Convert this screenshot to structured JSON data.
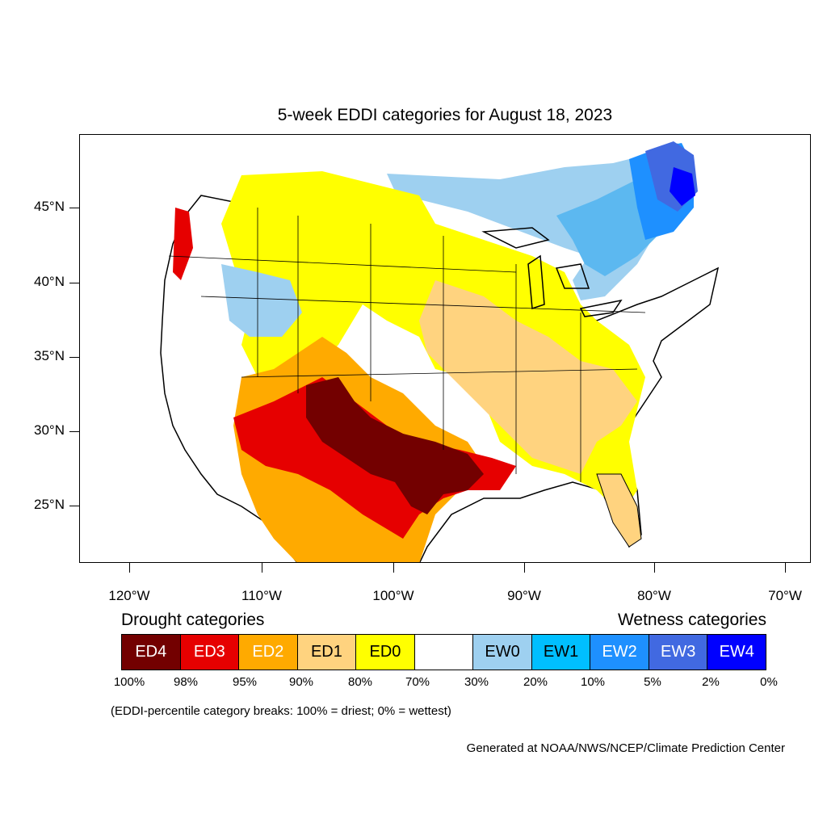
{
  "title": "5-week EDDI categories for August 18, 2023",
  "map": {
    "lat_labels": [
      "45°N",
      "40°N",
      "35°N",
      "30°N",
      "25°N"
    ],
    "lon_labels": [
      "120°W",
      "110°W",
      "100°W",
      "90°W",
      "80°W",
      "70°W"
    ],
    "region_colors": {
      "ed4": "#730000",
      "ed3": "#e60000",
      "ed2": "#ffaa00",
      "ed1": "#ffd37f",
      "ed0": "#ffff00",
      "neutral": "#ffffff",
      "ew0": "#9ed0f0",
      "ew1": "#00bfff",
      "ew2": "#1e90ff",
      "ew3": "#4169e1",
      "ew4": "#0000ff"
    }
  },
  "legend": {
    "drought_heading": "Drought categories",
    "wetness_heading": "Wetness categories",
    "categories": [
      {
        "label": "ED4",
        "color": "#730000",
        "text_color": "#ffffff"
      },
      {
        "label": "ED3",
        "color": "#e60000",
        "text_color": "#ffffff"
      },
      {
        "label": "ED2",
        "color": "#ffaa00",
        "text_color": "#ffffff"
      },
      {
        "label": "ED1",
        "color": "#ffd37f",
        "text_color": "#000000"
      },
      {
        "label": "ED0",
        "color": "#ffff00",
        "text_color": "#000000"
      },
      {
        "label": "",
        "color": "#ffffff",
        "text_color": "#000000"
      },
      {
        "label": "EW0",
        "color": "#9ed0f0",
        "text_color": "#000000"
      },
      {
        "label": "EW1",
        "color": "#00bfff",
        "text_color": "#000000"
      },
      {
        "label": "EW2",
        "color": "#1e90ff",
        "text_color": "#ffffff"
      },
      {
        "label": "EW3",
        "color": "#4169e1",
        "text_color": "#ffffff"
      },
      {
        "label": "EW4",
        "color": "#0000ff",
        "text_color": "#ffffff"
      }
    ],
    "percentiles": [
      "100%",
      "98%",
      "95%",
      "90%",
      "80%",
      "70%",
      "30%",
      "20%",
      "10%",
      "5%",
      "2%",
      "0%"
    ]
  },
  "note": "(EDDI-percentile category breaks: 100% = driest; 0% = wettest)",
  "credit": "Generated at NOAA/NWS/NCEP/Climate Prediction Center"
}
